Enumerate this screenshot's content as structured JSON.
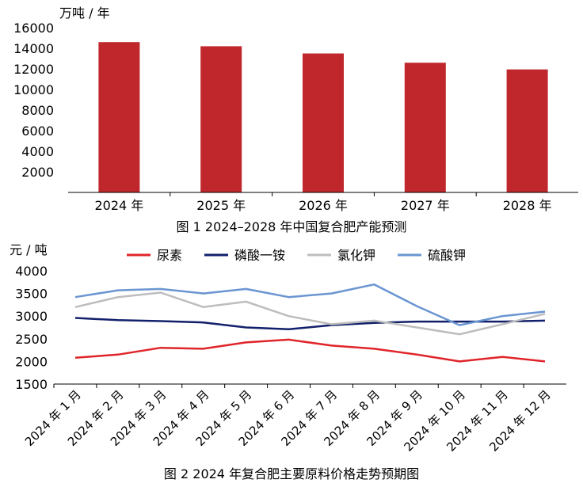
{
  "chart_data": [
    {
      "type": "bar",
      "title": "图 1  2024–2028 年中国复合肥产能预测",
      "ylabel": "万吨 / 年",
      "categories": [
        "2024 年",
        "2025 年",
        "2026 年",
        "2027 年",
        "2028 年"
      ],
      "values": [
        14600,
        14200,
        13500,
        12600,
        11950
      ],
      "ylim": [
        0,
        16000
      ],
      "yticks": [
        "2000",
        "4000",
        "6000",
        "8000",
        "10000",
        "12000",
        "14000",
        "16000"
      ],
      "grid": false,
      "bar_color": "#c0272d"
    },
    {
      "type": "line",
      "title": "图 2  2024 年复合肥主要原料价格走势预期图",
      "ylabel": "元 / 吨",
      "categories": [
        "2024 年 1 月",
        "2024 年 2 月",
        "2024 年 3 月",
        "2024 年 4 月",
        "2024 年 5 月",
        "2024 年 6 月",
        "2024 年 7 月",
        "2024 年 8 月",
        "2024 年 9 月",
        "2024 年 10 月",
        "2024 年 11 月",
        "2024 年 12 月"
      ],
      "ylim": [
        1500,
        4000
      ],
      "yticks": [
        "1500",
        "2000",
        "2500",
        "3000",
        "3500",
        "4000"
      ],
      "grid": false,
      "legend_position": "top",
      "series": [
        {
          "name": "尿素",
          "color": "#e0252b",
          "values": [
            2080,
            2150,
            2300,
            2280,
            2420,
            2480,
            2350,
            2280,
            2150,
            2000,
            2100,
            2000
          ]
        },
        {
          "name": "磷酸一铵",
          "color": "#12206b",
          "values": [
            2960,
            2910,
            2890,
            2860,
            2750,
            2710,
            2800,
            2850,
            2880,
            2880,
            2880,
            2900
          ]
        },
        {
          "name": "氯化钾",
          "color": "#bdbdbd",
          "values": [
            3200,
            3420,
            3520,
            3200,
            3320,
            3000,
            2820,
            2900,
            2750,
            2600,
            2820,
            3050
          ]
        },
        {
          "name": "硫酸钾",
          "color": "#6a95d1",
          "values": [
            3420,
            3570,
            3600,
            3500,
            3600,
            3420,
            3500,
            3700,
            3220,
            2800,
            3000,
            3100
          ]
        }
      ]
    }
  ]
}
